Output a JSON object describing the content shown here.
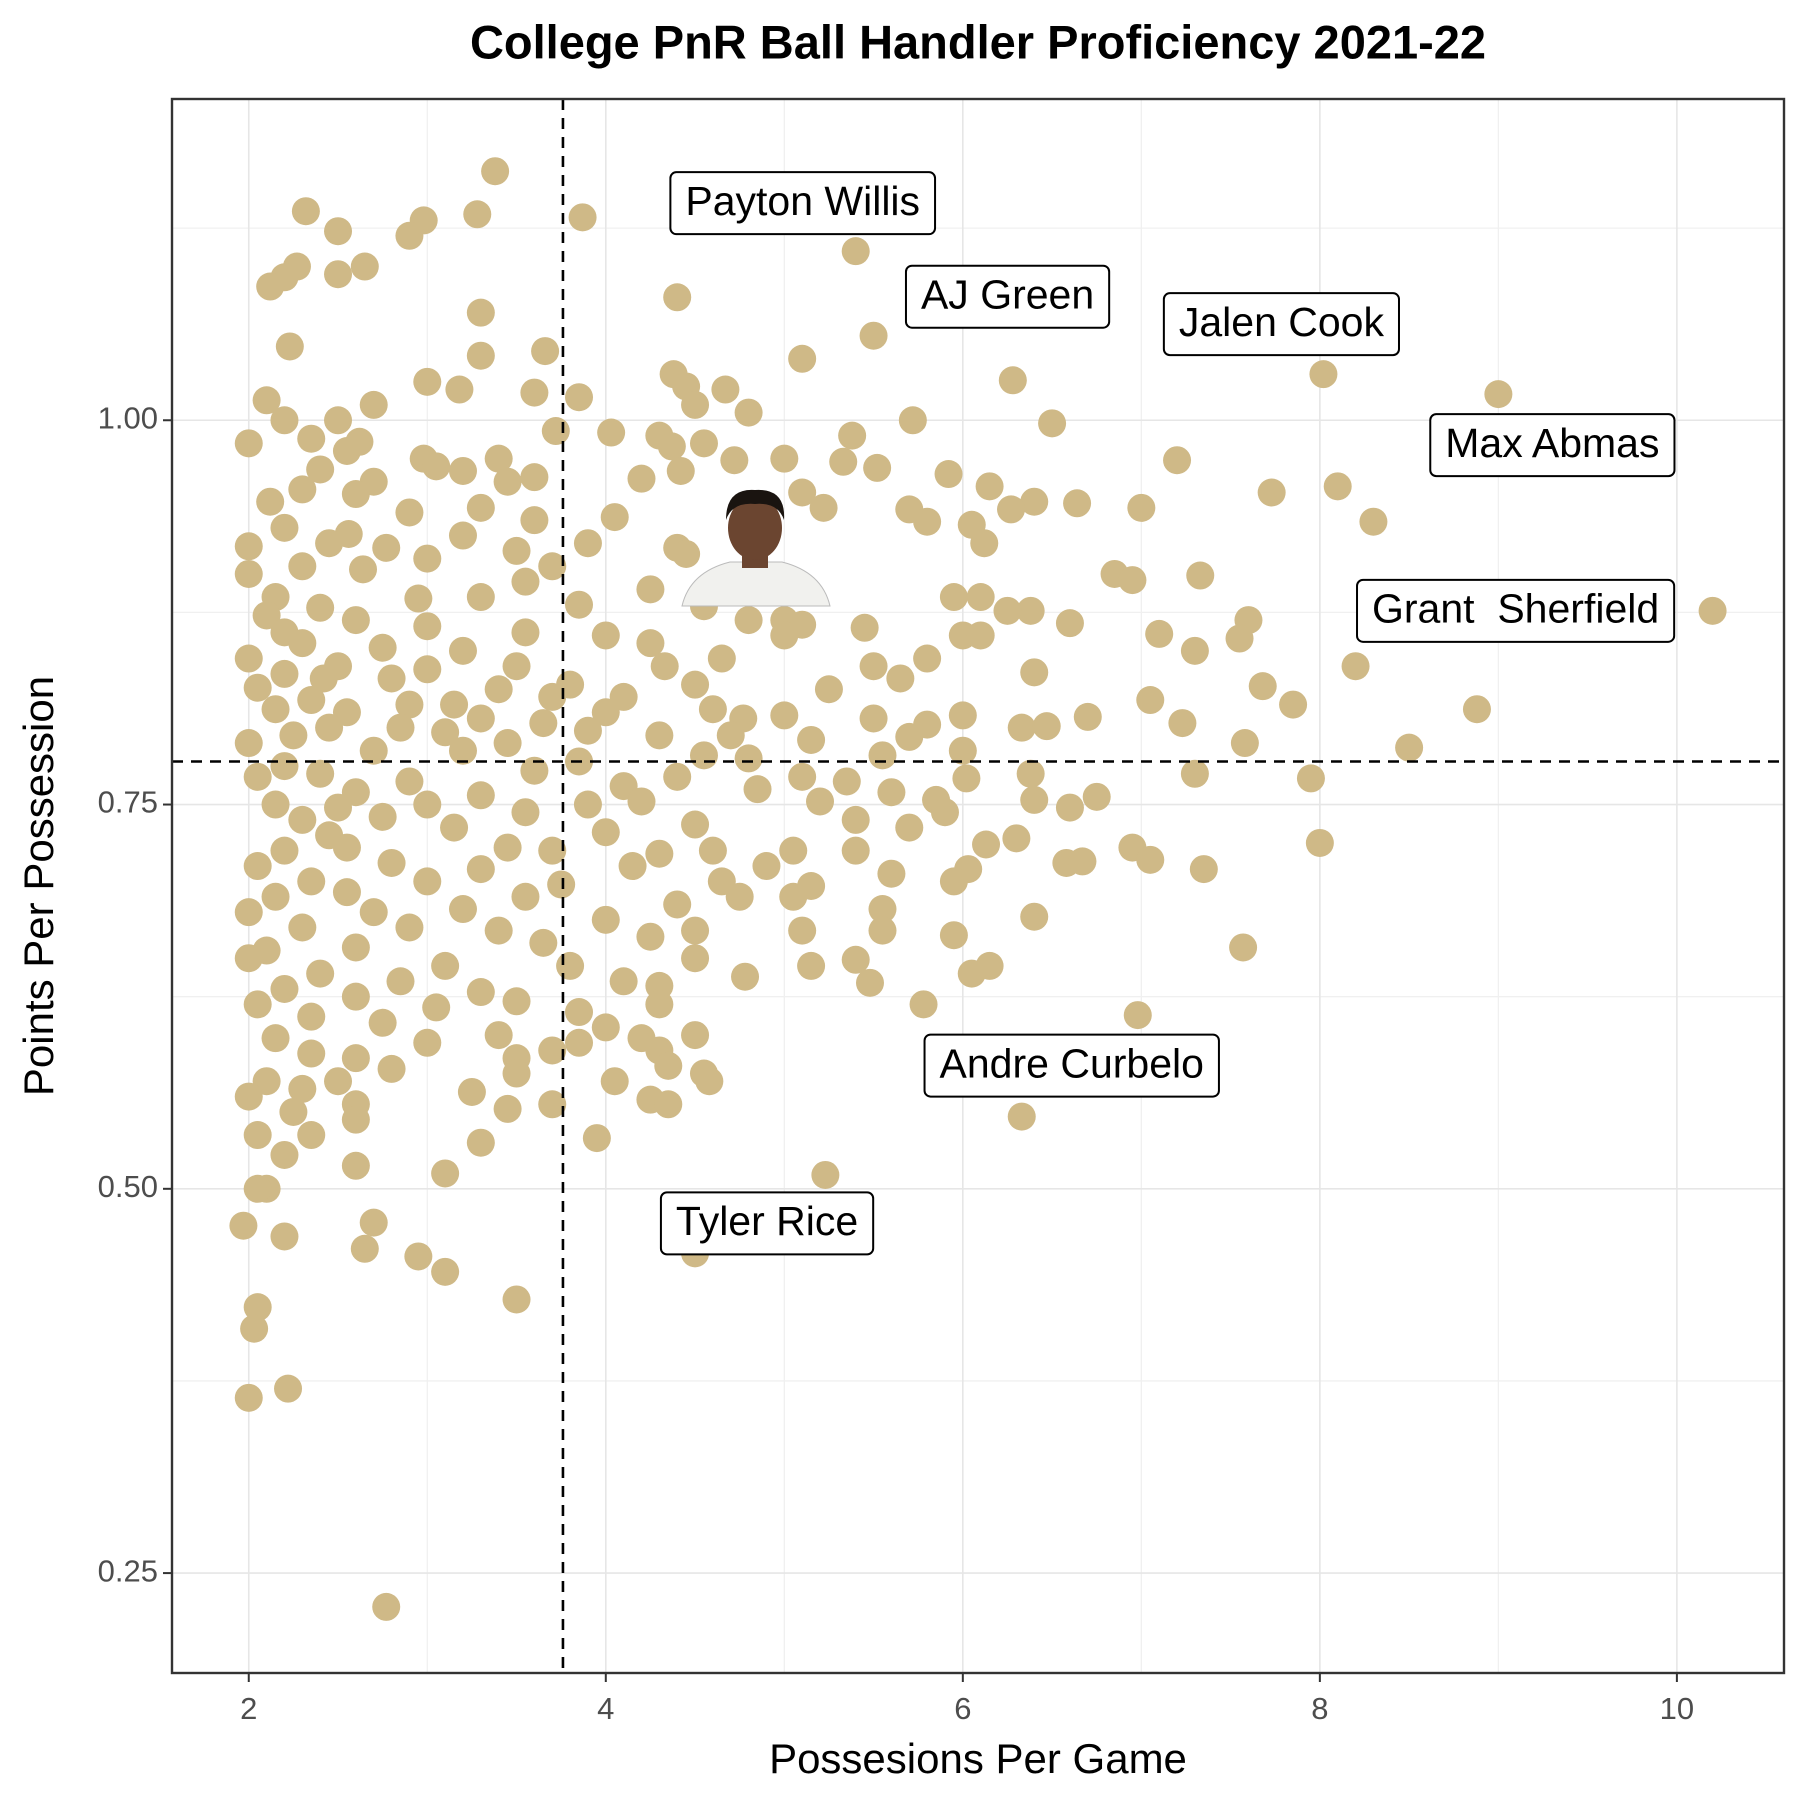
{
  "chart_data": {
    "type": "scatter",
    "title": "College PnR Ball Handler Proficiency 2021-22",
    "x_label": "Possesions Per Game",
    "y_label": "Points Per Possession",
    "color": "#cfb987",
    "xlim": [
      1.57,
      10.6
    ],
    "ylim": [
      0.185,
      1.209
    ],
    "xticks": [
      2,
      4,
      6,
      8,
      10
    ],
    "yticks": [
      0.25,
      {
        "value": 0.5,
        "label": "0.50"
      },
      0.75,
      {
        "value": 1,
        "label": "1.00"
      }
    ],
    "xminor": [
      3,
      5,
      7,
      9
    ],
    "yminor": [
      0.375,
      0.625,
      0.875,
      1.125
    ],
    "grid": true,
    "vline": 3.76,
    "hline": 0.778,
    "x": [
      3.38,
      2.32,
      3.28,
      3.87,
      2.98,
      2.5,
      2.9,
      2.65,
      2.27,
      2.2,
      2.5,
      2.12,
      4.4,
      3.3,
      2.23,
      3.66,
      5.1,
      3.3,
      4.38,
      6.28,
      3,
      4.45,
      3.18,
      4.67,
      3.6,
      3.85,
      2.1,
      2.7,
      4.5,
      4.8,
      2.2,
      2.5,
      5.72,
      6.5,
      3.72,
      4.03,
      4.3,
      5.38,
      2,
      2.55,
      4.37,
      4.55,
      2.35,
      2.62,
      2.98,
      3.4,
      5,
      4.72,
      5.33,
      7.2,
      5.52,
      2.4,
      3.05,
      3.2,
      4.42,
      5.92,
      2.7,
      3.6,
      4.2,
      6.15,
      8.1,
      2.3,
      2.6,
      3.45,
      5.1,
      6.4,
      6.64,
      2.12,
      5.22,
      7,
      2.9,
      3.3,
      7.73,
      5.7,
      6.27,
      3.6,
      4.05,
      5.8,
      6.05,
      8.3,
      2.2,
      2.56,
      3.2,
      2.45,
      3.9,
      6.12,
      4.4,
      4.45,
      2,
      3.5,
      2.77,
      3,
      2.3,
      3.7,
      2.64,
      2,
      6.85,
      6.95,
      7.33,
      3.55,
      4.25,
      2.15,
      3.3,
      5.95,
      6.1,
      2.95,
      3.85,
      2.4,
      4.55,
      6.38,
      2.1,
      2.6,
      7.6,
      6.25,
      3,
      4.8,
      5.1,
      5,
      5.45,
      6.6,
      7.1,
      2.2,
      3.55,
      4,
      5,
      6,
      6.1,
      7.55,
      2.3,
      2.75,
      3.2,
      4.25,
      4.65,
      5.8,
      7.3,
      2,
      2.5,
      3.5,
      3,
      4.33,
      5.5,
      5.25,
      8.2,
      2.2,
      2.42,
      2.8,
      3.8,
      4.5,
      6.4,
      7.68,
      2.05,
      3.4,
      4.1,
      5.65,
      7.05,
      2.35,
      2.9,
      3.15,
      3.7,
      4.6,
      5.5,
      7.85,
      8.88,
      5,
      6,
      6.7,
      2.15,
      2.55,
      3.3,
      4,
      3.65,
      4.77,
      2.45,
      2.85,
      3.1,
      3.9,
      5.8,
      7.23,
      6.33,
      6.47,
      2,
      2.25,
      3.45,
      4.3,
      4.7,
      5.15,
      5.7,
      7.58,
      8.5,
      2.7,
      3.2,
      4.55,
      6,
      3.85,
      4.8,
      5.55,
      2.2,
      2.4,
      3.6,
      2.05,
      4.4,
      5.1,
      7.95,
      7.3,
      6.38,
      6.02,
      2.9,
      4.1,
      5.35,
      2.6,
      3.3,
      4.85,
      5.6,
      6.75,
      6.4,
      2.15,
      2.5,
      3,
      3.9,
      4.2,
      5.2,
      5.85,
      6.6,
      3.55,
      2.3,
      2.75,
      4.5,
      5.4,
      5.9,
      2.45,
      3.15,
      4,
      5.7,
      6.3,
      8,
      6.13,
      2.2,
      2.55,
      3.45,
      3.7,
      4.3,
      4.6,
      5.05,
      5.4,
      6.95,
      7.05,
      6.58,
      6.67,
      2.05,
      2.8,
      3.3,
      4.15,
      4.9,
      5.6,
      7.35,
      6.03,
      2.35,
      3,
      3.75,
      4.65,
      5.95,
      2.15,
      2.55,
      3.55,
      4.4,
      5.05,
      5.15,
      4.75,
      2,
      2.7,
      3.2,
      4,
      5.55,
      6.4,
      2.3,
      2.9,
      3.4,
      4.5,
      5.1,
      5.55,
      5.95,
      2.1,
      2.6,
      3.65,
      4.25,
      7.57,
      2,
      3.1,
      3.8,
      4.5,
      5.4,
      5.15,
      6.15,
      2.4,
      2.85,
      4.1,
      4.78,
      6.05,
      5.48,
      2.2,
      3.3,
      4.3,
      2.6,
      3.5,
      2.05,
      3.05,
      3.85,
      4.3,
      5.78,
      6.98,
      2.35,
      2.75,
      3.4,
      4,
      4.5,
      2.15,
      3,
      3.7,
      3.85,
      4.2,
      2.6,
      4.3,
      2.35,
      3.5,
      4.35,
      2.8,
      3.5,
      4.55,
      2.1,
      2.5,
      4.05,
      4.58,
      2.3,
      3.25,
      2,
      2.6,
      3.7,
      4.25,
      4.35,
      3.45,
      2.25,
      2.6,
      2.05,
      2.35,
      3.3,
      3.95,
      2.2,
      2.6,
      3.1,
      5.23,
      2.1,
      2.05,
      2.7,
      1.97,
      2.2,
      2.65,
      2.95,
      3.1,
      3.5,
      2.05,
      2.03,
      2,
      2.22,
      2.77
    ],
    "values": [
      1.162,
      1.136,
      1.134,
      1.132,
      1.13,
      1.123,
      1.12,
      1.1,
      1.1,
      1.093,
      1.095,
      1.087,
      1.08,
      1.07,
      1.048,
      1.045,
      1.04,
      1.042,
      1.03,
      1.026,
      1.025,
      1.022,
      1.02,
      1.02,
      1.018,
      1.015,
      1.013,
      1.01,
      1.01,
      1.005,
      1,
      1,
      1,
      0.998,
      0.993,
      0.992,
      0.99,
      0.99,
      0.985,
      0.98,
      0.983,
      0.985,
      0.988,
      0.986,
      0.975,
      0.975,
      0.975,
      0.974,
      0.973,
      0.974,
      0.969,
      0.968,
      0.97,
      0.967,
      0.967,
      0.965,
      0.96,
      0.963,
      0.962,
      0.957,
      0.957,
      0.955,
      0.952,
      0.96,
      0.953,
      0.947,
      0.946,
      0.947,
      0.943,
      0.943,
      0.94,
      0.943,
      0.953,
      0.942,
      0.942,
      0.935,
      0.937,
      0.934,
      0.932,
      0.934,
      0.93,
      0.926,
      0.925,
      0.92,
      0.92,
      0.92,
      0.917,
      0.913,
      0.918,
      0.915,
      0.917,
      0.91,
      0.905,
      0.905,
      0.903,
      0.9,
      0.9,
      0.896,
      0.899,
      0.895,
      0.89,
      0.885,
      0.885,
      0.885,
      0.885,
      0.884,
      0.88,
      0.878,
      0.879,
      0.876,
      0.873,
      0.87,
      0.87,
      0.876,
      0.866,
      0.87,
      0.867,
      0.87,
      0.865,
      0.868,
      0.861,
      0.862,
      0.862,
      0.86,
      0.86,
      0.86,
      0.86,
      0.858,
      0.855,
      0.852,
      0.85,
      0.855,
      0.845,
      0.845,
      0.85,
      0.845,
      0.84,
      0.84,
      0.838,
      0.84,
      0.84,
      0.825,
      0.84,
      0.835,
      0.832,
      0.832,
      0.828,
      0.828,
      0.836,
      0.827,
      0.826,
      0.825,
      0.82,
      0.832,
      0.818,
      0.818,
      0.815,
      0.815,
      0.82,
      0.812,
      0.806,
      0.815,
      0.812,
      0.808,
      0.808,
      0.807,
      0.812,
      0.81,
      0.806,
      0.81,
      0.803,
      0.806,
      0.8,
      0.8,
      0.797,
      0.798,
      0.802,
      0.803,
      0.8,
      0.801,
      0.79,
      0.795,
      0.79,
      0.795,
      0.795,
      0.792,
      0.794,
      0.79,
      0.787,
      0.785,
      0.785,
      0.782,
      0.785,
      0.778,
      0.78,
      0.782,
      0.775,
      0.77,
      0.772,
      0.768,
      0.768,
      0.768,
      0.767,
      0.77,
      0.77,
      0.767,
      0.765,
      0.762,
      0.765,
      0.758,
      0.756,
      0.76,
      0.758,
      0.755,
      0.753,
      0.75,
      0.748,
      0.75,
      0.75,
      0.752,
      0.752,
      0.753,
      0.748,
      0.745,
      0.74,
      0.742,
      0.737,
      0.74,
      0.745,
      0.73,
      0.735,
      0.732,
      0.735,
      0.728,
      0.725,
      0.724,
      0.72,
      0.722,
      0.722,
      0.72,
      0.718,
      0.72,
      0.72,
      0.72,
      0.722,
      0.714,
      0.712,
      0.713,
      0.71,
      0.712,
      0.708,
      0.71,
      0.71,
      0.705,
      0.708,
      0.708,
      0.7,
      0.7,
      0.698,
      0.7,
      0.7,
      0.69,
      0.693,
      0.69,
      0.685,
      0.69,
      0.697,
      0.69,
      0.68,
      0.68,
      0.682,
      0.675,
      0.682,
      0.677,
      0.67,
      0.67,
      0.668,
      0.668,
      0.668,
      0.668,
      0.665,
      0.655,
      0.657,
      0.66,
      0.664,
      0.657,
      0.65,
      0.645,
      0.645,
      0.65,
      0.649,
      0.645,
      0.645,
      0.64,
      0.635,
      0.635,
      0.638,
      0.64,
      0.634,
      0.63,
      0.628,
      0.632,
      0.625,
      0.622,
      0.62,
      0.618,
      0.615,
      0.62,
      0.62,
      0.613,
      0.612,
      0.608,
      0.6,
      0.605,
      0.6,
      0.598,
      0.595,
      0.59,
      0.595,
      0.598,
      0.585,
      0.59,
      0.588,
      0.585,
      0.58,
      0.578,
      0.575,
      0.575,
      0.57,
      0.57,
      0.57,
      0.57,
      0.565,
      0.563,
      0.56,
      0.555,
      0.555,
      0.558,
      0.555,
      0.552,
      0.55,
      0.545,
      0.535,
      0.535,
      0.53,
      0.533,
      0.522,
      0.515,
      0.51,
      0.509,
      0.5,
      0.5,
      0.478,
      0.476,
      0.469,
      0.461,
      0.456,
      0.446,
      0.428,
      0.423,
      0.409,
      0.364,
      0.37,
      0.228
    ],
    "annotations": [
      {
        "text": "Payton Willis",
        "x": 5.4,
        "y": 1.11
      },
      {
        "text": "AJ Green",
        "x": 5.5,
        "y": 1.055
      },
      {
        "text": "Jalen Cook",
        "x": 8.02,
        "y": 1.03
      },
      {
        "text": "Max Abmas",
        "x": 9.0,
        "y": 1.017
      },
      {
        "text": "Grant  Sherfield",
        "x": 10.2,
        "y": 0.876
      },
      {
        "text": "Andre Curbelo",
        "x": 6.33,
        "y": 0.547
      },
      {
        "text": "Tyler Rice",
        "x": 4.5,
        "y": 0.458
      }
    ]
  }
}
